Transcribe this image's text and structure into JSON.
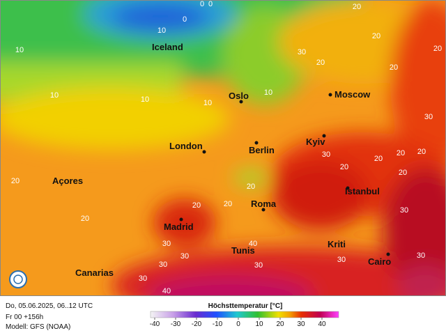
{
  "map": {
    "cities": [
      "Iceland",
      "Oslo",
      "Moscow",
      "London",
      "Berlin",
      "Kyiv",
      "Açores",
      "Istanbul",
      "Roma",
      "Madrid",
      "Kriti",
      "Tunis",
      "Cairo",
      "Canarias"
    ],
    "contour_labels": [
      0,
      0,
      0,
      10,
      10,
      10,
      10,
      10,
      10,
      20,
      20,
      20,
      20,
      20,
      20,
      20,
      20,
      20,
      20,
      20,
      20,
      20,
      20,
      20,
      30,
      30,
      30,
      30,
      30,
      30,
      30,
      30,
      30,
      30,
      30,
      40,
      40
    ]
  },
  "footer": {
    "date": "Do, 05.06.2025, 06..12 UTC",
    "run": "Fr 00 +156h",
    "model": "Modell: GFS (NOAA)"
  },
  "colorbar": {
    "title": "Höchsttemperatur [°C]",
    "xlim": [
      -42,
      48
    ],
    "ticks": [
      -40,
      -30,
      -20,
      -10,
      0,
      10,
      20,
      30,
      40
    ]
  }
}
